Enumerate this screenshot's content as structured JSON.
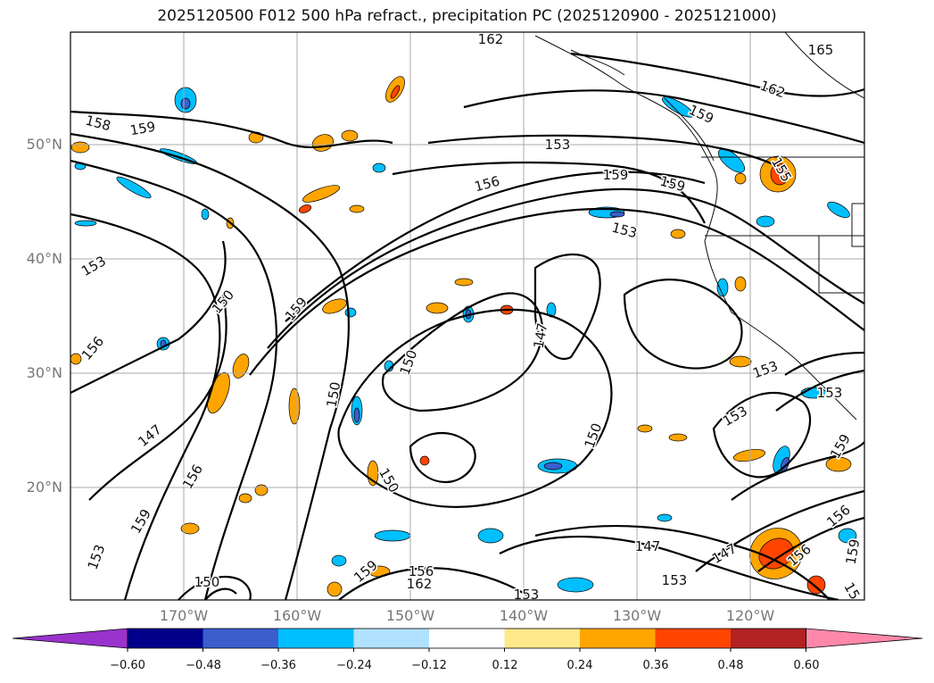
{
  "title": "2025120500 F012 500 hPa refract., precipitation PC (2025120900 - 2025121000)",
  "lat_labels": [
    "50°N",
    "40°N",
    "30°N",
    "20°N"
  ],
  "lon_labels": [
    "170°W",
    "160°W",
    "150°W",
    "140°W",
    "130°W",
    "120°W"
  ],
  "contour_labels": [
    "162",
    "165",
    "162",
    "159",
    "158",
    "159",
    "153",
    "156",
    "159",
    "159",
    "153",
    "153",
    "150",
    "159",
    "156",
    "147",
    "150",
    "150",
    "150",
    "153",
    "153",
    "150",
    "147",
    "156",
    "159",
    "147",
    "147",
    "153",
    "150",
    "162",
    "156",
    "159",
    "153",
    "156",
    "153",
    "159",
    "156",
    "159",
    "15",
    "155",
    "153"
  ],
  "colorbar": {
    "tick_labels": [
      "−0.60",
      "−0.48",
      "−0.36",
      "−0.24",
      "−0.12",
      "0.12",
      "0.24",
      "0.36",
      "0.48",
      "0.60"
    ],
    "colors": [
      "#9933cc",
      "#00008b",
      "#3a5fcd",
      "#00bfff",
      "#b0e2ff",
      "#ffffff",
      "#ffe98a",
      "#ffa500",
      "#ff4500",
      "#b22222",
      "#ff88aa"
    ]
  },
  "fill_colors": {
    "neg_light": "#b0e2ff",
    "neg_mid": "#00bfff",
    "neg_strong": "#3a5fcd",
    "pos_light": "#ffe98a",
    "pos_mid": "#ffa500",
    "pos_strong": "#ff4500"
  }
}
